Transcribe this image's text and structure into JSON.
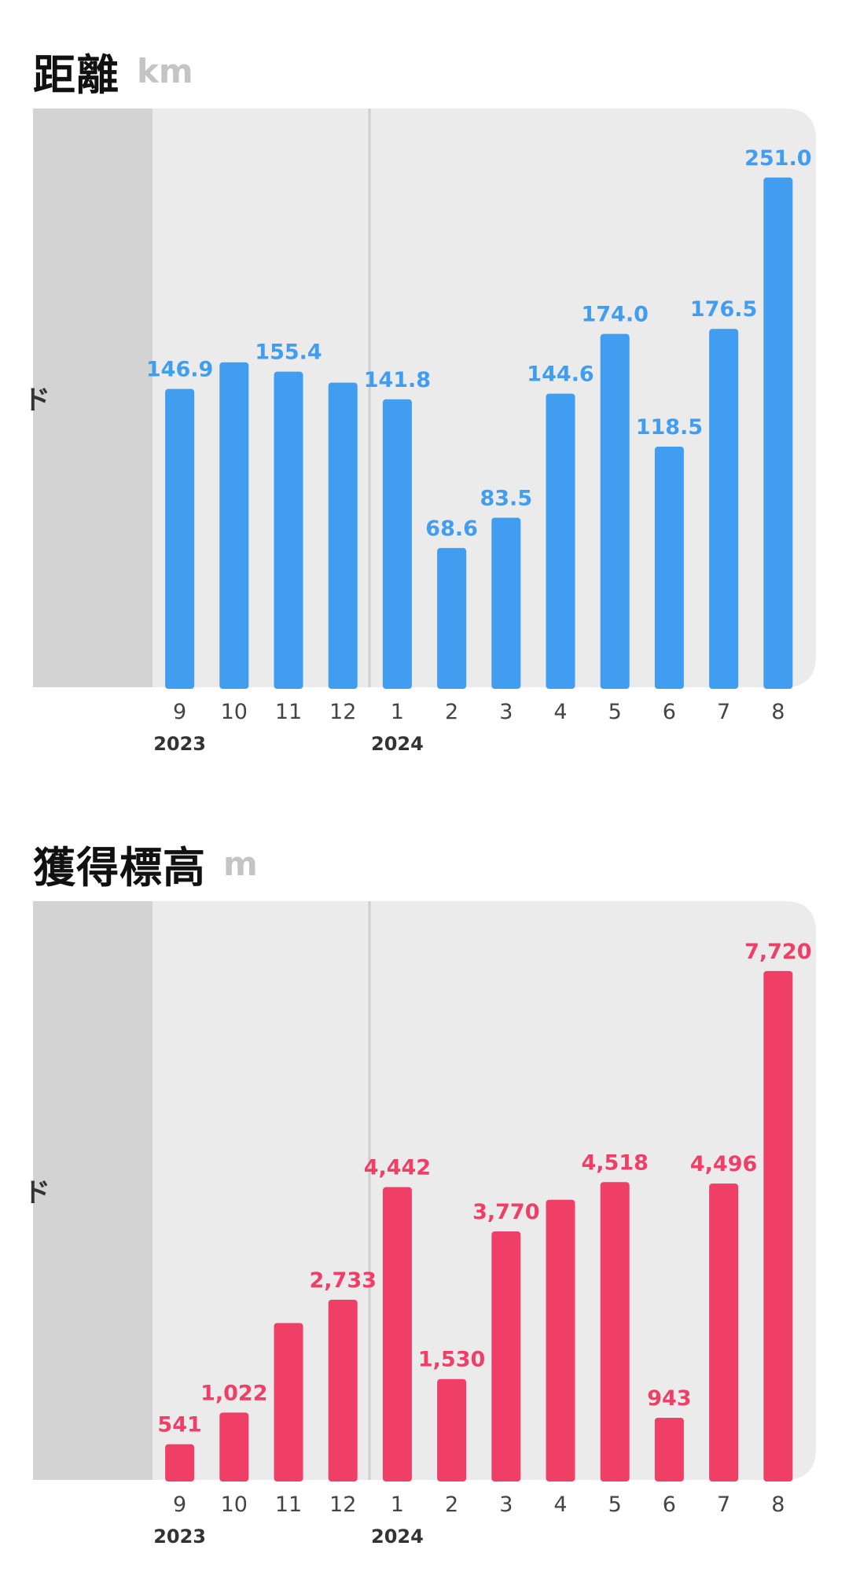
{
  "sections": [
    {
      "title": "距離",
      "unit": "km"
    },
    {
      "title": "獲得標高",
      "unit": "m"
    }
  ],
  "side_label": "ド",
  "colors": {
    "distance": "#419DF0",
    "elevation": "#F03F67",
    "plot_bg": "#EBEBEB",
    "prior_bg": "#D3D3D3",
    "tick_text": "#444444",
    "year_text": "#333333"
  },
  "chart_data": [
    {
      "type": "bar",
      "categories": [
        "9",
        "10",
        "11",
        "12",
        "1",
        "2",
        "3",
        "4",
        "5",
        "6",
        "7",
        "8"
      ],
      "year_labels": [
        {
          "index": 0,
          "label": "2023"
        },
        {
          "index": 4,
          "label": "2024"
        }
      ],
      "series": [
        {
          "values": [
            146.9,
            160.0,
            155.4,
            150.0,
            141.8,
            68.6,
            83.5,
            144.6,
            174.0,
            118.5,
            176.5,
            251.0
          ],
          "labels": [
            "146.9",
            "",
            "155.4",
            "",
            "141.8",
            "68.6",
            "83.5",
            "144.6",
            "174.0",
            "118.5",
            "176.5",
            "251.0"
          ],
          "color": "#419DF0"
        }
      ],
      "ylim": [
        0,
        285
      ],
      "legend": "none",
      "grid": false
    },
    {
      "type": "bar",
      "categories": [
        "9",
        "10",
        "11",
        "12",
        "1",
        "2",
        "3",
        "4",
        "5",
        "6",
        "7",
        "8"
      ],
      "year_labels": [
        {
          "index": 0,
          "label": "2023"
        },
        {
          "index": 4,
          "label": "2024"
        }
      ],
      "series": [
        {
          "values": [
            541,
            1022,
            2380,
            2733,
            4442,
            1530,
            3770,
            4250,
            4518,
            943,
            4496,
            7720
          ],
          "labels": [
            "541",
            "1,022",
            "",
            "2,733",
            "4,442",
            "1,530",
            "3,770",
            "",
            "4,518",
            "943",
            "4,496",
            "7,720"
          ],
          "color": "#F03F67"
        }
      ],
      "ylim": [
        0,
        8780
      ],
      "legend": "none",
      "grid": false
    }
  ]
}
